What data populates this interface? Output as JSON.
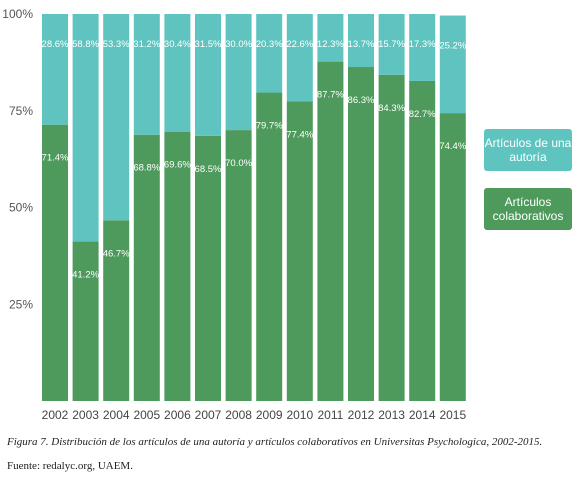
{
  "chart_data": {
    "type": "bar",
    "stacked": true,
    "percent": true,
    "categories": [
      "2002",
      "2003",
      "2004",
      "2005",
      "2006",
      "2007",
      "2008",
      "2009",
      "2010",
      "2011",
      "2012",
      "2013",
      "2014",
      "2015"
    ],
    "series": [
      {
        "name": "Artículos colaborativos",
        "color": "#4e9a5c",
        "values": [
          71.4,
          41.2,
          46.7,
          68.8,
          69.6,
          68.5,
          70.0,
          79.7,
          77.4,
          87.7,
          86.3,
          84.3,
          82.7,
          74.4
        ],
        "labels": [
          "71.4%",
          "41.2%",
          "46.7%",
          "68.8%",
          "69.6%",
          "68.5%",
          "70.0%",
          "79.7%",
          "77.4%",
          "87.7%",
          "86.3%",
          "84.3%",
          "82.7%",
          "74.4%"
        ]
      },
      {
        "name": "Artículos de una autoría",
        "color": "#5fc4bf",
        "values": [
          28.6,
          58.8,
          53.3,
          31.2,
          30.4,
          31.5,
          30.0,
          20.3,
          22.6,
          12.3,
          13.7,
          15.7,
          17.3,
          25.2
        ],
        "labels": [
          "28.6%",
          "58.8%",
          "53.3%",
          "31.2%",
          "30.4%",
          "31.5%",
          "30.0%",
          "20.3%",
          "22.6%",
          "12.3%",
          "13.7%",
          "15.7%",
          "17.3%",
          "25.2%"
        ]
      }
    ],
    "yticks": [
      "100%",
      "75%",
      "50%",
      "25%"
    ],
    "ylim": [
      0,
      100
    ],
    "legend_placement": "right",
    "grid": false
  },
  "legend": {
    "single_author": "Artículos de una autoría",
    "collaborative": "Artículos colaborativos"
  },
  "caption": "Figura 7. Distribución de los artículos de una autoría y artículos colaborativos en Universitas Psychologica, 2002-2015.",
  "source": "Fuente: redalyc.org, UAEM."
}
